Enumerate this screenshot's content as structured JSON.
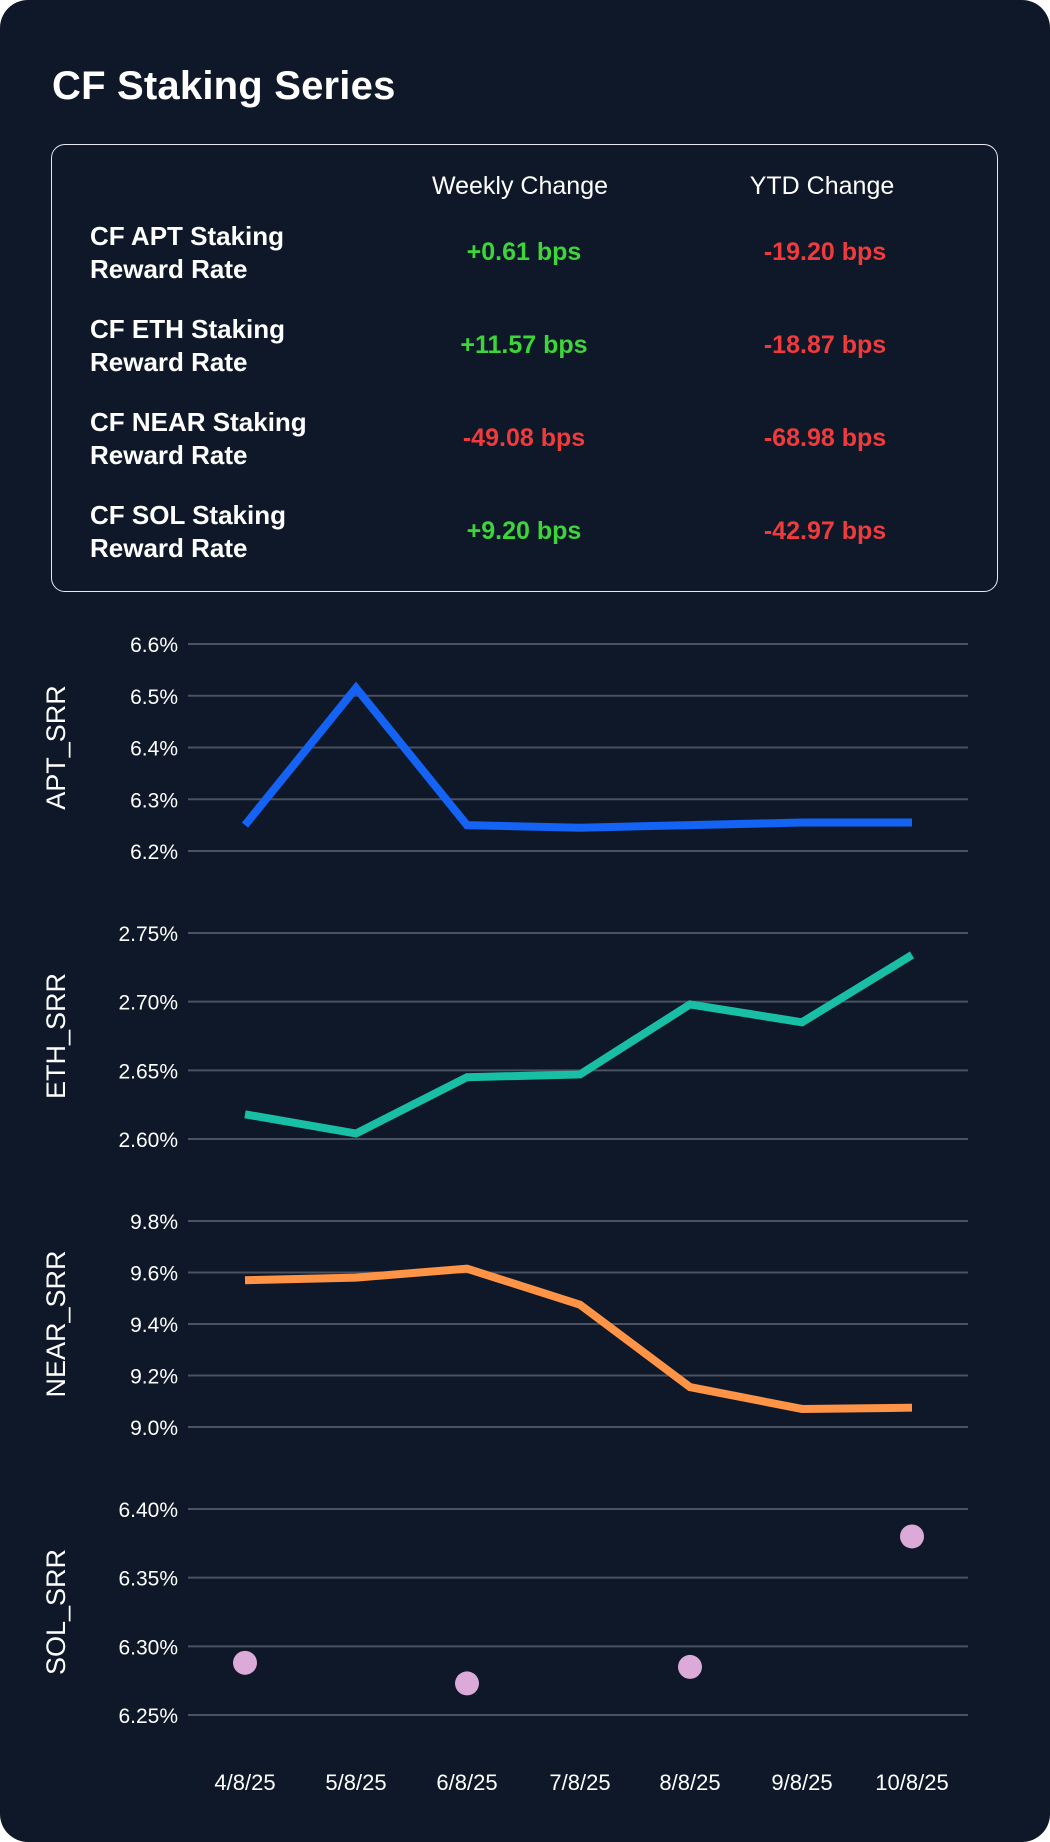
{
  "title": "CF Staking Series",
  "table": {
    "headers": [
      "Weekly Change",
      "YTD Change"
    ],
    "rows": [
      {
        "label": "CF APT Staking Reward Rate",
        "weekly": "+0.61 bps",
        "ytd": "-19.20 bps"
      },
      {
        "label": "CF ETH Staking Reward Rate",
        "weekly": "+11.57 bps",
        "ytd": "-18.87 bps"
      },
      {
        "label": "CF NEAR Staking Reward Rate",
        "weekly": "-49.08 bps",
        "ytd": "-68.98 bps"
      },
      {
        "label": "CF SOL Staking Reward Rate",
        "weekly": "+9.20 bps",
        "ytd": "-42.97 bps"
      }
    ]
  },
  "colors": {
    "background": "#0f1829",
    "positive": "#3dd63a",
    "negative": "#ef3b3b",
    "grid": "#4a5160",
    "apt": "#1463f5",
    "eth": "#19bfa5",
    "near": "#ff9447",
    "sol": "#dcaad8"
  },
  "chart_data": [
    {
      "type": "line",
      "ylabel": "APT_SRR",
      "x": [
        "4/8/25",
        "5/8/25",
        "6/8/25",
        "7/8/25",
        "8/8/25",
        "9/8/25",
        "10/8/25"
      ],
      "values": [
        6.25,
        6.515,
        6.25,
        6.245,
        6.25,
        6.255,
        6.255
      ],
      "yticks": [
        6.2,
        6.3,
        6.4,
        6.5,
        6.6
      ],
      "tick_labels": [
        "6.2%",
        "6.3%",
        "6.4%",
        "6.5%",
        "6.6%"
      ],
      "ylim": [
        6.2,
        6.6
      ],
      "color": "#1463f5"
    },
    {
      "type": "line",
      "ylabel": "ETH_SRR",
      "x": [
        "4/8/25",
        "5/8/25",
        "6/8/25",
        "7/8/25",
        "8/8/25",
        "9/8/25",
        "10/8/25"
      ],
      "values": [
        2.618,
        2.604,
        2.645,
        2.647,
        2.698,
        2.685,
        2.734
      ],
      "yticks": [
        2.6,
        2.65,
        2.7,
        2.75
      ],
      "tick_labels": [
        "2.60%",
        "2.65%",
        "2.70%",
        "2.75%"
      ],
      "ylim": [
        2.6,
        2.75
      ],
      "color": "#19bfa5"
    },
    {
      "type": "line",
      "ylabel": "NEAR_SRR",
      "x": [
        "4/8/25",
        "5/8/25",
        "6/8/25",
        "7/8/25",
        "8/8/25",
        "9/8/25",
        "10/8/25"
      ],
      "values": [
        9.57,
        9.58,
        9.615,
        9.475,
        9.155,
        9.07,
        9.075
      ],
      "yticks": [
        9.0,
        9.2,
        9.4,
        9.6,
        9.8
      ],
      "tick_labels": [
        "9.0%",
        "9.2%",
        "9.4%",
        "9.6%",
        "9.8%"
      ],
      "ylim": [
        9.0,
        9.8
      ],
      "color": "#ff9447"
    },
    {
      "type": "scatter",
      "ylabel": "SOL_SRR",
      "x": [
        "4/8/25",
        "6/8/25",
        "8/8/25",
        "10/8/25"
      ],
      "values": [
        6.288,
        6.273,
        6.285,
        6.38
      ],
      "yticks": [
        6.25,
        6.3,
        6.35,
        6.4
      ],
      "tick_labels": [
        "6.25%",
        "6.30%",
        "6.35%",
        "6.40%"
      ],
      "ylim": [
        6.25,
        6.4
      ],
      "color": "#dcaad8"
    }
  ],
  "x_axis": {
    "labels": [
      "4/8/25",
      "5/8/25",
      "6/8/25",
      "7/8/25",
      "8/8/25",
      "9/8/25",
      "10/8/25"
    ]
  }
}
